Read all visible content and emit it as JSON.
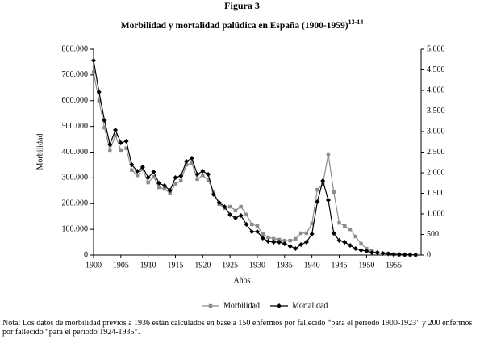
{
  "chart_data": {
    "type": "line",
    "title": "Figura 3",
    "subtitle": "Morbilidad y mortalidad palúdica en España (1900-1959)",
    "subtitle_superscript": "13-14",
    "xlabel": "Años",
    "ylabel": "Morbilidad",
    "note": "Nota: Los datos de morbilidad previos a 1936 están calculados en base a 150 enfermos por fallecido “para el periodo 1900-1923” y 200 enfermos por fallecido “para el periodo 1924-1935”.",
    "x": [
      1900,
      1901,
      1902,
      1903,
      1904,
      1905,
      1906,
      1907,
      1908,
      1909,
      1910,
      1911,
      1912,
      1913,
      1914,
      1915,
      1916,
      1917,
      1918,
      1919,
      1920,
      1921,
      1922,
      1923,
      1924,
      1925,
      1926,
      1927,
      1928,
      1929,
      1930,
      1931,
      1932,
      1933,
      1934,
      1935,
      1936,
      1937,
      1938,
      1939,
      1940,
      1941,
      1942,
      1943,
      1944,
      1945,
      1946,
      1947,
      1948,
      1949,
      1950,
      1951,
      1952,
      1953,
      1954,
      1955,
      1956,
      1957,
      1958,
      1959
    ],
    "xlim": [
      1900,
      1960
    ],
    "xticks": [
      1900,
      1905,
      1910,
      1915,
      1920,
      1925,
      1930,
      1935,
      1940,
      1945,
      1950,
      1955
    ],
    "ylim": [
      0,
      800000
    ],
    "yticks": [
      0,
      {
        "value": 100000,
        "label": "100.000"
      },
      {
        "value": 200000,
        "label": "200.000"
      },
      {
        "value": 300000,
        "label": "300.000"
      },
      {
        "value": 400000,
        "label": "400.000"
      },
      {
        "value": 500000,
        "label": "500.000"
      },
      {
        "value": 600000,
        "label": "600.000"
      },
      {
        "value": 700000,
        "label": "700.000"
      },
      {
        "value": 800000,
        "label": "800.000"
      }
    ],
    "y2lim": [
      0,
      5000
    ],
    "y2ticks": [
      0,
      500,
      {
        "value": 1000,
        "label": "1.000"
      },
      {
        "value": 1500,
        "label": "1.500"
      },
      {
        "value": 2000,
        "label": "2.000"
      },
      {
        "value": 2500,
        "label": "2.500"
      },
      {
        "value": 3000,
        "label": "3.000"
      },
      {
        "value": 3500,
        "label": "3.500"
      },
      {
        "value": 4000,
        "label": "4.000"
      },
      {
        "value": 4500,
        "label": "4.500"
      },
      {
        "value": 5000,
        "label": "5.000"
      }
    ],
    "series": [
      {
        "name": "Morbilidad",
        "color": "#8c8c8c",
        "marker": "square",
        "values": [
          710000,
          600000,
          495000,
          408000,
          465000,
          408000,
          415000,
          330000,
          310000,
          333000,
          282000,
          304000,
          263000,
          257000,
          242000,
          276000,
          289000,
          351000,
          358000,
          295000,
          310000,
          292000,
          245000,
          198000,
          182000,
          188000,
          173000,
          188000,
          157000,
          119000,
          113000,
          82000,
          69000,
          63000,
          60000,
          56000,
          56000,
          63000,
          85000,
          85000,
          122000,
          254000,
          276000,
          392000,
          245000,
          125000,
          113000,
          100000,
          72000,
          44000,
          25000,
          16000,
          9000,
          6000,
          6000,
          3000,
          2000,
          1000,
          1000,
          0
        ]
      },
      {
        "name": "Mortalidad",
        "color": "#000000",
        "marker": "diamond",
        "axis": "y2",
        "values": [
          4725,
          3960,
          3275,
          2686,
          3039,
          2725,
          2765,
          2196,
          2039,
          2137,
          1882,
          2020,
          1745,
          1686,
          1569,
          1882,
          1922,
          2275,
          2353,
          1961,
          2039,
          1961,
          1471,
          1275,
          1176,
          980,
          902,
          961,
          745,
          569,
          569,
          412,
          333,
          314,
          314,
          275,
          216,
          157,
          255,
          314,
          510,
          1294,
          1804,
          1333,
          529,
          353,
          314,
          235,
          157,
          118,
          98,
          59,
          59,
          40,
          30,
          20,
          15,
          10,
          8,
          5
        ]
      }
    ]
  }
}
